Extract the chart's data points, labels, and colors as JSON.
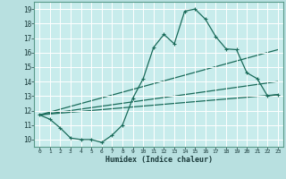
{
  "background_color": "#b8e0e0",
  "plot_bg_color": "#c8ecec",
  "grid_color": "#ffffff",
  "line_color": "#1a6b5a",
  "xlabel": "Humidex (Indice chaleur)",
  "xlim": [
    -0.5,
    23.5
  ],
  "ylim": [
    9.5,
    19.5
  ],
  "xticks": [
    0,
    1,
    2,
    3,
    4,
    5,
    6,
    7,
    8,
    9,
    10,
    11,
    12,
    13,
    14,
    15,
    16,
    17,
    18,
    19,
    20,
    21,
    22,
    23
  ],
  "yticks": [
    10,
    11,
    12,
    13,
    14,
    15,
    16,
    17,
    18,
    19
  ],
  "curve_x": [
    0,
    1,
    2,
    3,
    4,
    5,
    6,
    7,
    8,
    9,
    10,
    11,
    12,
    13,
    14,
    15,
    16,
    17,
    18,
    19,
    20,
    21,
    22,
    23
  ],
  "curve_y": [
    11.7,
    11.4,
    10.8,
    10.1,
    10.0,
    10.0,
    9.8,
    10.3,
    11.0,
    12.85,
    14.2,
    16.35,
    17.25,
    16.6,
    18.85,
    19.0,
    18.3,
    17.1,
    16.25,
    16.2,
    14.6,
    14.2,
    13.0,
    13.1
  ],
  "line2_x": [
    0,
    23
  ],
  "line2_y": [
    11.7,
    16.2
  ],
  "line3_x": [
    0,
    23
  ],
  "line3_y": [
    11.7,
    13.1
  ],
  "line4_x": [
    0,
    23
  ],
  "line4_y": [
    11.7,
    14.0
  ]
}
